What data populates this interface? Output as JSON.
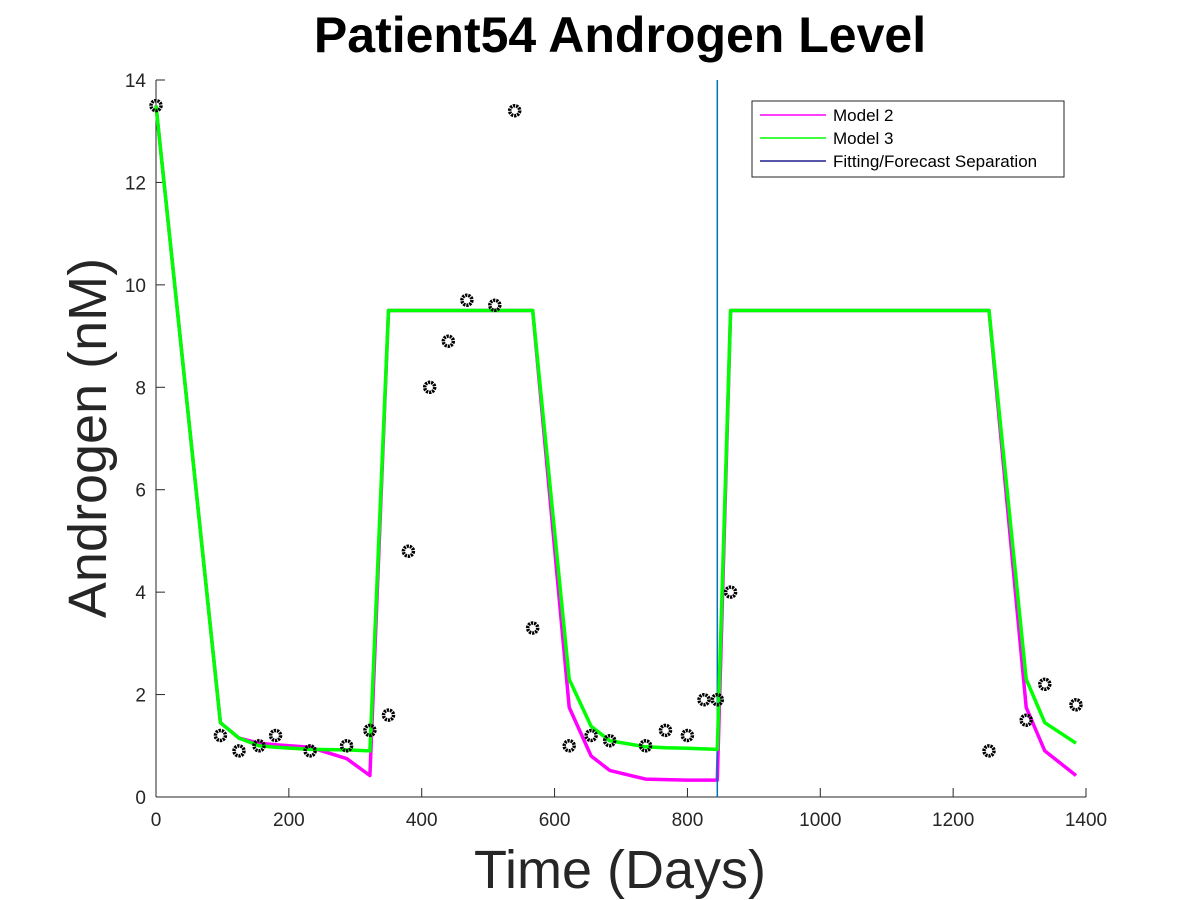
{
  "chart_data": {
    "type": "line",
    "title": "Patient54 Androgen Level",
    "xlabel": "Time (Days)",
    "ylabel": "Androgen (nM)",
    "xlim": [
      0,
      1400
    ],
    "ylim": [
      0,
      14
    ],
    "xticks": [
      0,
      200,
      400,
      600,
      800,
      1000,
      1200,
      1400
    ],
    "yticks": [
      0,
      2,
      4,
      6,
      8,
      10,
      12,
      14
    ],
    "grid": false,
    "legend_position": "top-right",
    "separation_x": 845,
    "series": [
      {
        "name": "Model 2",
        "color": "#ff00ff",
        "x": [
          0,
          97,
          125,
          155,
          180,
          232,
          287,
          322,
          350,
          380,
          412,
          440,
          468,
          510,
          540,
          567,
          622,
          655,
          683,
          737,
          767,
          800,
          825,
          845,
          865,
          900,
          1000,
          1100,
          1200,
          1254,
          1310,
          1338,
          1385
        ],
        "y": [
          13.5,
          1.45,
          1.15,
          1.05,
          1.02,
          0.97,
          0.75,
          0.42,
          9.5,
          9.5,
          9.5,
          9.5,
          9.5,
          9.5,
          9.5,
          9.5,
          1.75,
          0.8,
          0.52,
          0.35,
          0.34,
          0.33,
          0.33,
          0.33,
          9.5,
          9.5,
          9.5,
          9.5,
          9.5,
          9.5,
          1.75,
          0.9,
          0.42
        ]
      },
      {
        "name": "Model 3",
        "color": "#00ff00",
        "x": [
          0,
          97,
          125,
          155,
          180,
          232,
          287,
          322,
          350,
          380,
          412,
          440,
          468,
          510,
          540,
          567,
          622,
          655,
          683,
          737,
          767,
          800,
          825,
          845,
          865,
          900,
          1000,
          1100,
          1200,
          1254,
          1310,
          1338,
          1385
        ],
        "y": [
          13.5,
          1.45,
          1.15,
          1.0,
          0.97,
          0.93,
          0.92,
          0.9,
          9.5,
          9.5,
          9.5,
          9.5,
          9.5,
          9.5,
          9.5,
          9.5,
          2.3,
          1.38,
          1.1,
          0.98,
          0.96,
          0.95,
          0.94,
          0.93,
          9.5,
          9.5,
          9.5,
          9.5,
          9.5,
          9.5,
          2.3,
          1.45,
          1.05
        ]
      },
      {
        "name": "Fitting/Forecast Separation",
        "color": "#0072bd",
        "legend_color": "#1f1f8f",
        "x": [
          845,
          845
        ],
        "y": [
          0,
          14
        ]
      }
    ],
    "observations": {
      "marker": "circle",
      "color": "#000000",
      "x": [
        0,
        97,
        125,
        155,
        180,
        232,
        287,
        322,
        350,
        380,
        412,
        440,
        468,
        510,
        540,
        567,
        622,
        655,
        683,
        737,
        767,
        800,
        825,
        845,
        865,
        1254,
        1310,
        1338,
        1385
      ],
      "y": [
        13.5,
        1.2,
        0.9,
        1.0,
        1.2,
        0.9,
        1.0,
        1.3,
        1.6,
        4.8,
        8.0,
        8.9,
        9.7,
        9.6,
        13.4,
        3.3,
        1.0,
        1.2,
        1.1,
        1.0,
        1.3,
        1.2,
        1.9,
        1.9,
        4.0,
        0.9,
        1.5,
        2.2,
        1.8
      ]
    }
  }
}
